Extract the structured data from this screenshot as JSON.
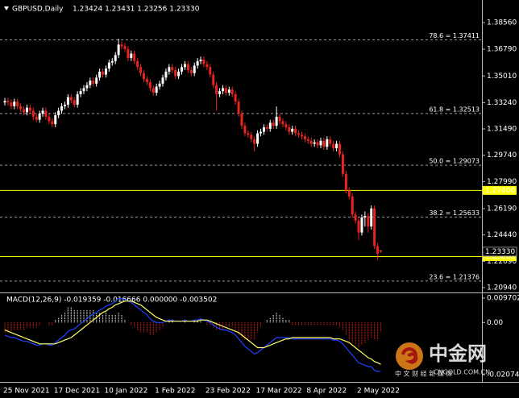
{
  "chart_data": [
    {
      "type": "candlestick",
      "title": "GBPUSD,Daily",
      "quote": "1.23424 1.23431 1.23256 1.23330",
      "up_color": "#ffffff",
      "down_color": "#e8241c",
      "categories": [
        "25 Nov 2021",
        null,
        null,
        null,
        null,
        null,
        null,
        null,
        null,
        null,
        null,
        null,
        null,
        null,
        null,
        null,
        "17 Dec 2021",
        null,
        null,
        null,
        null,
        null,
        null,
        null,
        null,
        null,
        null,
        null,
        null,
        null,
        null,
        null,
        "10 Jan 2022",
        null,
        null,
        null,
        null,
        null,
        null,
        null,
        null,
        null,
        null,
        null,
        null,
        null,
        null,
        null,
        "1 Feb 2022",
        null,
        null,
        null,
        null,
        null,
        null,
        null,
        null,
        null,
        null,
        null,
        null,
        null,
        null,
        null,
        "23 Feb 2022",
        null,
        null,
        null,
        null,
        null,
        null,
        null,
        null,
        null,
        null,
        null,
        null,
        null,
        null,
        null,
        "17 Mar 2022",
        null,
        null,
        null,
        null,
        null,
        null,
        null,
        null,
        null,
        null,
        null,
        null,
        null,
        null,
        null,
        "8 Apr 2022",
        null,
        null,
        null,
        null,
        null,
        null,
        null,
        null,
        null,
        null,
        null,
        null,
        null,
        null,
        null,
        "2 May 2022",
        null,
        null,
        null,
        null,
        null,
        null,
        null
      ],
      "open": [
        1.3325,
        1.3335,
        1.3325,
        1.33,
        1.333,
        1.33,
        1.328,
        1.326,
        1.329,
        1.327,
        1.323,
        1.321,
        1.325,
        1.327,
        1.323,
        1.32,
        1.318,
        1.324,
        1.327,
        1.33,
        1.331,
        1.336,
        1.334,
        1.331,
        1.338,
        1.34,
        1.342,
        1.344,
        1.347,
        1.345,
        1.349,
        1.353,
        1.351,
        1.355,
        1.359,
        1.36,
        1.364,
        1.371,
        1.37,
        1.368,
        1.362,
        1.365,
        1.36,
        1.356,
        1.352,
        1.348,
        1.346,
        1.342,
        1.339,
        1.343,
        1.345,
        1.349,
        1.353,
        1.356,
        1.354,
        1.35,
        1.353,
        1.356,
        1.358,
        1.354,
        1.352,
        1.357,
        1.36,
        1.361,
        1.358,
        1.356,
        1.351,
        1.344,
        1.338,
        1.34,
        1.342,
        1.339,
        1.341,
        1.338,
        1.333,
        1.325,
        1.317,
        1.312,
        1.311,
        1.308,
        1.305,
        1.312,
        1.313,
        1.316,
        1.315,
        1.319,
        1.317,
        1.323,
        1.32,
        1.318,
        1.316,
        1.313,
        1.315,
        1.312,
        1.311,
        1.31,
        1.308,
        1.307,
        1.305,
        1.306,
        1.304,
        1.307,
        1.303,
        1.308,
        1.305,
        1.302,
        1.305,
        1.298,
        1.285,
        1.274,
        1.27,
        1.258,
        1.254,
        1.246,
        1.256,
        1.257,
        1.25,
        1.262,
        1.237,
        1.23424
      ],
      "high": [
        1.3355,
        1.3355,
        1.3345,
        1.335,
        1.335,
        1.332,
        1.33,
        1.331,
        1.331,
        1.329,
        1.325,
        1.327,
        1.329,
        1.329,
        1.325,
        1.322,
        1.326,
        1.329,
        1.332,
        1.333,
        1.338,
        1.338,
        1.336,
        1.34,
        1.342,
        1.344,
        1.346,
        1.349,
        1.349,
        1.351,
        1.355,
        1.355,
        1.357,
        1.361,
        1.362,
        1.366,
        1.3749,
        1.373,
        1.372,
        1.37,
        1.367,
        1.367,
        1.362,
        1.358,
        1.354,
        1.35,
        1.348,
        1.344,
        1.345,
        1.347,
        1.351,
        1.355,
        1.358,
        1.358,
        1.356,
        1.355,
        1.358,
        1.36,
        1.36,
        1.356,
        1.359,
        1.362,
        1.363,
        1.363,
        1.36,
        1.358,
        1.353,
        1.346,
        1.342,
        1.344,
        1.344,
        1.343,
        1.343,
        1.34,
        1.335,
        1.327,
        1.319,
        1.314,
        1.313,
        1.31,
        1.314,
        1.315,
        1.318,
        1.318,
        1.321,
        1.321,
        1.3298,
        1.325,
        1.322,
        1.32,
        1.318,
        1.317,
        1.317,
        1.314,
        1.313,
        1.312,
        1.31,
        1.309,
        1.308,
        1.308,
        1.309,
        1.309,
        1.31,
        1.31,
        1.307,
        1.307,
        1.307,
        1.3,
        1.287,
        1.276,
        1.272,
        1.26,
        1.256,
        1.258,
        1.26,
        1.259,
        1.264,
        1.264,
        1.239,
        1.23431
      ],
      "low": [
        1.3305,
        1.3305,
        1.328,
        1.328,
        1.328,
        1.326,
        1.324,
        1.324,
        1.325,
        1.321,
        1.319,
        1.319,
        1.323,
        1.321,
        1.318,
        1.316,
        1.316,
        1.322,
        1.325,
        1.328,
        1.329,
        1.332,
        1.329,
        1.329,
        1.336,
        1.338,
        1.34,
        1.342,
        1.343,
        1.343,
        1.347,
        1.349,
        1.349,
        1.353,
        1.357,
        1.358,
        1.362,
        1.368,
        1.366,
        1.36,
        1.36,
        1.358,
        1.354,
        1.35,
        1.346,
        1.344,
        1.34,
        1.337,
        1.337,
        1.341,
        1.343,
        1.347,
        1.351,
        1.352,
        1.348,
        1.348,
        1.351,
        1.354,
        1.352,
        1.35,
        1.35,
        1.355,
        1.358,
        1.356,
        1.354,
        1.349,
        1.342,
        1.327,
        1.336,
        1.338,
        1.337,
        1.337,
        1.336,
        1.331,
        1.323,
        1.315,
        1.31,
        1.309,
        1.306,
        1.3,
        1.303,
        1.31,
        1.311,
        1.313,
        1.313,
        1.315,
        1.315,
        1.318,
        1.316,
        1.314,
        1.311,
        1.311,
        1.31,
        1.309,
        1.308,
        1.306,
        1.305,
        1.303,
        1.303,
        1.302,
        1.302,
        1.301,
        1.301,
        1.303,
        1.3,
        1.3,
        1.296,
        1.283,
        1.272,
        1.268,
        1.256,
        1.252,
        1.241,
        1.244,
        1.25,
        1.246,
        1.248,
        1.235,
        1.228,
        1.23256
      ],
      "close": [
        1.3335,
        1.3325,
        1.33,
        1.333,
        1.33,
        1.328,
        1.326,
        1.329,
        1.327,
        1.323,
        1.321,
        1.325,
        1.327,
        1.323,
        1.32,
        1.318,
        1.324,
        1.327,
        1.33,
        1.331,
        1.336,
        1.334,
        1.331,
        1.338,
        1.34,
        1.342,
        1.344,
        1.347,
        1.345,
        1.349,
        1.353,
        1.351,
        1.355,
        1.359,
        1.36,
        1.364,
        1.371,
        1.37,
        1.368,
        1.362,
        1.365,
        1.36,
        1.356,
        1.352,
        1.348,
        1.346,
        1.342,
        1.339,
        1.343,
        1.345,
        1.349,
        1.353,
        1.356,
        1.354,
        1.35,
        1.353,
        1.356,
        1.358,
        1.354,
        1.352,
        1.357,
        1.36,
        1.361,
        1.358,
        1.356,
        1.351,
        1.344,
        1.338,
        1.34,
        1.342,
        1.339,
        1.341,
        1.338,
        1.333,
        1.325,
        1.317,
        1.312,
        1.311,
        1.308,
        1.305,
        1.312,
        1.313,
        1.316,
        1.315,
        1.319,
        1.317,
        1.323,
        1.32,
        1.318,
        1.316,
        1.313,
        1.315,
        1.312,
        1.311,
        1.31,
        1.308,
        1.307,
        1.305,
        1.306,
        1.304,
        1.307,
        1.303,
        1.308,
        1.305,
        1.302,
        1.305,
        1.298,
        1.285,
        1.274,
        1.27,
        1.258,
        1.254,
        1.246,
        1.256,
        1.257,
        1.25,
        1.262,
        1.237,
        1.232,
        1.2333
      ],
      "ylim": [
        1.2067,
        1.399
      ],
      "yticks": [
        {
          "value": 1.3856,
          "label": "1.38560"
        },
        {
          "value": 1.3679,
          "label": "1.36790"
        },
        {
          "value": 1.3501,
          "label": "1.35010"
        },
        {
          "value": 1.3324,
          "label": "1.33240"
        },
        {
          "value": 1.3149,
          "label": "1.31490"
        },
        {
          "value": 1.2974,
          "label": "1.29740"
        },
        {
          "value": 1.2799,
          "label": "1.27990"
        },
        {
          "value": 1.2619,
          "label": "1.26190"
        },
        {
          "value": 1.2444,
          "label": "1.24440"
        },
        {
          "value": 1.2269,
          "label": "1.22690"
        },
        {
          "value": 1.2094,
          "label": "1.20940"
        }
      ],
      "fib_levels": [
        {
          "value": 1.37411,
          "label": "78.6 = 1.37411"
        },
        {
          "value": 1.32513,
          "label": "61.8 = 1.32513"
        },
        {
          "value": 1.29073,
          "label": "50.0 = 1.29073"
        },
        {
          "value": 1.25633,
          "label": "38.2 = 1.25633"
        },
        {
          "value": 1.21376,
          "label": "23.6 = 1.21376"
        }
      ],
      "hlines": [
        {
          "value": 1.274,
          "label": "1.27400",
          "color": "#ffff00"
        },
        {
          "value": 1.23,
          "label": "1.23000",
          "color": "#ffff00"
        }
      ],
      "bid": {
        "value": 1.2333,
        "label": "1.23330"
      }
    },
    {
      "type": "macd",
      "title": "MACD(12,26,9) -0.019359 -0.016666 0.000000 -0.003502",
      "ylim": [
        -0.0233,
        0.0113
      ],
      "yticks": [
        0.009702,
        {
          "value": 0,
          "label": "0.00"
        },
        -0.020743
      ],
      "histogram": {
        "up_color": "#ffffff",
        "down_color": "#e8241c",
        "values": [
          -0.004,
          -0.004,
          -0.004,
          -0.003,
          -0.003,
          -0.003,
          -0.003,
          -0.002,
          -0.002,
          -0.002,
          -0.002,
          -0.001,
          0,
          0,
          -0.001,
          -0.001,
          0.001,
          0.002,
          0.003,
          0.004,
          0.006,
          0.006,
          0.005,
          0.005,
          0.005,
          0.005,
          0.005,
          0.005,
          0.005,
          0.004,
          0.004,
          0.003,
          0.004,
          0.003,
          0.003,
          0.003,
          0.004,
          0.003,
          0.001,
          0,
          -0.001,
          -0.002,
          -0.003,
          -0.004,
          -0.004,
          -0.004,
          -0.005,
          -0.005,
          -0.004,
          -0.003,
          -0.002,
          0,
          0.001,
          0.001,
          0,
          0,
          0,
          0.001,
          0,
          0,
          0.001,
          0.001,
          0.001,
          0,
          -0.001,
          -0.001,
          -0.002,
          -0.003,
          -0.003,
          -0.003,
          -0.002,
          -0.002,
          -0.002,
          -0.003,
          -0.005,
          -0.006,
          -0.007,
          -0.007,
          -0.007,
          -0.007,
          -0.004,
          -0.002,
          0,
          0.001,
          0.002,
          0.003,
          0.004,
          0.003,
          0.002,
          0.001,
          0.001,
          -0.001,
          -0.001,
          -0.001,
          -0.001,
          -0.001,
          -0.001,
          -0.001,
          -0.001,
          -0.001,
          -0.001,
          -0.001,
          -0.001,
          -0.001,
          -0.001,
          -0.001,
          -0.002,
          -0.003,
          -0.005,
          -0.007,
          -0.008,
          -0.009,
          -0.01,
          -0.009,
          -0.008,
          -0.007,
          -0.006,
          -0.007,
          -0.007,
          -0.003502
        ]
      },
      "main": {
        "color": "#2040ff",
        "values": [
          -0.005,
          -0.0055,
          -0.006,
          -0.006,
          -0.0065,
          -0.007,
          -0.0075,
          -0.0075,
          -0.008,
          -0.0085,
          -0.009,
          -0.009,
          -0.0085,
          -0.0085,
          -0.009,
          -0.009,
          -0.008,
          -0.007,
          -0.006,
          -0.005,
          -0.0035,
          -0.003,
          -0.0025,
          -0.0015,
          -0.0005,
          0.0005,
          0.0015,
          0.0025,
          0.0035,
          0.004,
          0.005,
          0.0055,
          0.0065,
          0.007,
          0.0075,
          0.0085,
          0.0095,
          0.0095,
          0.009,
          0.0085,
          0.008,
          0.007,
          0.006,
          0.005,
          0.004,
          0.003,
          0.0015,
          0.0005,
          0,
          0,
          0,
          0.0005,
          0.001,
          0.001,
          0.0005,
          0.0005,
          0.0005,
          0.001,
          0.0005,
          0.0005,
          0.001,
          0.001,
          0.0015,
          0.001,
          0.0005,
          0,
          -0.001,
          -0.002,
          -0.0025,
          -0.003,
          -0.003,
          -0.0035,
          -0.004,
          -0.005,
          -0.0065,
          -0.008,
          -0.0095,
          -0.0105,
          -0.0115,
          -0.0125,
          -0.012,
          -0.011,
          -0.01,
          -0.009,
          -0.008,
          -0.007,
          -0.006,
          -0.006,
          -0.006,
          -0.006,
          -0.006,
          -0.0065,
          -0.0065,
          -0.0065,
          -0.0065,
          -0.0065,
          -0.0065,
          -0.0065,
          -0.0065,
          -0.0065,
          -0.0065,
          -0.0065,
          -0.0065,
          -0.0065,
          -0.007,
          -0.007,
          -0.0075,
          -0.0085,
          -0.01,
          -0.0115,
          -0.013,
          -0.0145,
          -0.016,
          -0.0165,
          -0.017,
          -0.0175,
          -0.0175,
          -0.019,
          -0.0195,
          -0.019359
        ]
      },
      "signal": {
        "color": "#ffff66",
        "values": [
          -0.003,
          -0.0035,
          -0.004,
          -0.0045,
          -0.005,
          -0.0055,
          -0.006,
          -0.0065,
          -0.007,
          -0.0075,
          -0.008,
          -0.0085,
          -0.0085,
          -0.0085,
          -0.0085,
          -0.0085,
          -0.0085,
          -0.008,
          -0.0075,
          -0.007,
          -0.0065,
          -0.006,
          -0.005,
          -0.004,
          -0.003,
          -0.002,
          -0.001,
          0,
          0.001,
          0.002,
          0.003,
          0.004,
          0.0045,
          0.0055,
          0.006,
          0.007,
          0.0075,
          0.008,
          0.0085,
          0.0085,
          0.0085,
          0.008,
          0.0075,
          0.007,
          0.006,
          0.005,
          0.004,
          0.003,
          0.002,
          0.0015,
          0.001,
          0.0005,
          0.0005,
          0.0005,
          0.0005,
          0.0005,
          0.0005,
          0.0005,
          0.0005,
          0.0005,
          0.0005,
          0.0005,
          0.001,
          0.001,
          0.001,
          0.0005,
          0,
          -0.0005,
          -0.001,
          -0.0015,
          -0.002,
          -0.0025,
          -0.003,
          -0.0035,
          -0.004,
          -0.005,
          -0.006,
          -0.007,
          -0.008,
          -0.009,
          -0.01,
          -0.01,
          -0.01,
          -0.0095,
          -0.009,
          -0.0085,
          -0.008,
          -0.0075,
          -0.007,
          -0.0065,
          -0.0065,
          -0.006,
          -0.006,
          -0.006,
          -0.006,
          -0.006,
          -0.006,
          -0.006,
          -0.006,
          -0.006,
          -0.006,
          -0.006,
          -0.006,
          -0.006,
          -0.0065,
          -0.0065,
          -0.0065,
          -0.007,
          -0.0075,
          -0.008,
          -0.009,
          -0.01,
          -0.011,
          -0.012,
          -0.013,
          -0.014,
          -0.0145,
          -0.0155,
          -0.016,
          -0.016666
        ]
      }
    }
  ],
  "watermark": {
    "brand": "中金网",
    "slogan": "中 文 财 经 新 媒 体",
    "domain": "CNGOLD.COM.CN"
  }
}
